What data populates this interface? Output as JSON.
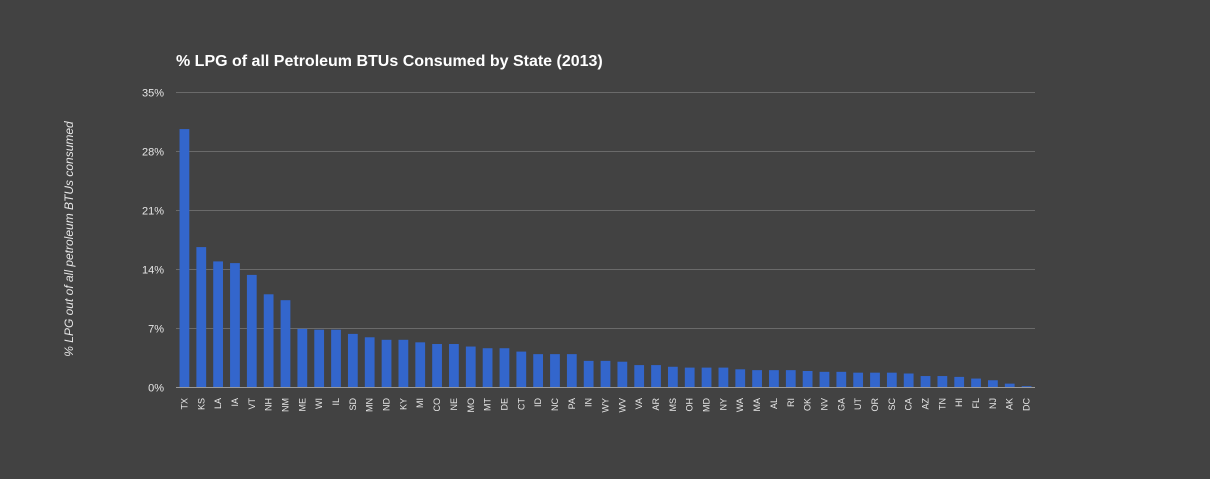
{
  "chart_data": {
    "type": "bar",
    "title": "% LPG of all Petroleum BTUs Consumed by State (2013)",
    "xlabel": "",
    "ylabel": "% LPG out of all petroleum BTUs consumed",
    "ylim": [
      0,
      35
    ],
    "yticks": [
      "0%",
      "7%",
      "14%",
      "21%",
      "28%",
      "35%"
    ],
    "ytick_values": [
      0,
      7,
      14,
      21,
      28,
      35
    ],
    "grid": true,
    "bar_color": "#3366cc",
    "background_color": "#424242",
    "categories": [
      "TX",
      "KS",
      "LA",
      "IA",
      "VT",
      "NH",
      "NM",
      "ME",
      "WI",
      "IL",
      "SD",
      "MN",
      "ND",
      "KY",
      "MI",
      "CO",
      "NE",
      "MO",
      "MT",
      "DE",
      "CT",
      "ID",
      "NC",
      "PA",
      "IN",
      "WY",
      "WV",
      "VA",
      "AR",
      "MS",
      "OH",
      "MD",
      "NY",
      "WA",
      "MA",
      "AL",
      "RI",
      "OK",
      "NV",
      "GA",
      "UT",
      "OR",
      "SC",
      "CA",
      "AZ",
      "TN",
      "HI",
      "FL",
      "NJ",
      "AK",
      "DC"
    ],
    "values": [
      30.6,
      16.6,
      14.9,
      14.7,
      13.3,
      11.0,
      10.3,
      6.9,
      6.8,
      6.8,
      6.3,
      5.9,
      5.6,
      5.6,
      5.3,
      5.1,
      5.1,
      4.8,
      4.6,
      4.6,
      4.2,
      3.9,
      3.9,
      3.9,
      3.1,
      3.1,
      3.0,
      2.6,
      2.6,
      2.4,
      2.3,
      2.3,
      2.3,
      2.1,
      2.0,
      2.0,
      2.0,
      1.9,
      1.8,
      1.8,
      1.7,
      1.7,
      1.7,
      1.6,
      1.3,
      1.3,
      1.2,
      1.0,
      0.8,
      0.4,
      0.1
    ]
  }
}
